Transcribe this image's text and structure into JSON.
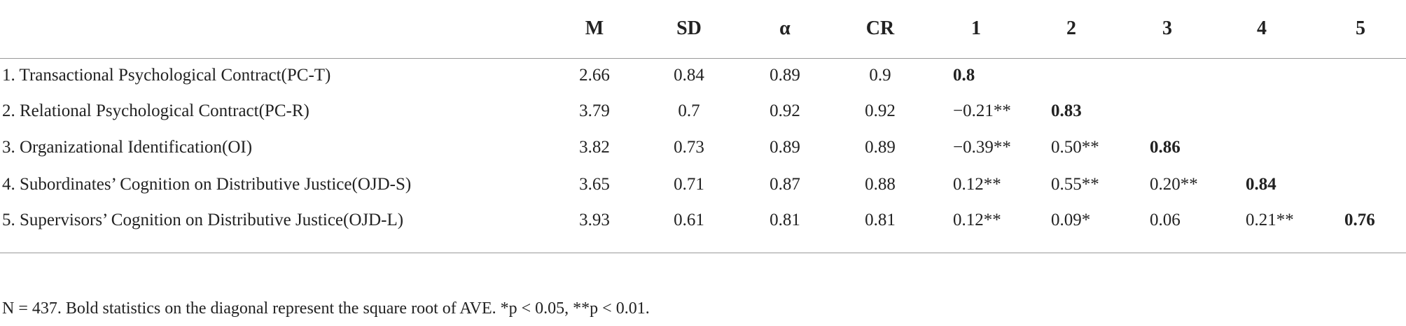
{
  "table": {
    "headers": [
      "M",
      "SD",
      "α",
      "CR",
      "1",
      "2",
      "3",
      "4",
      "5"
    ],
    "rows": [
      [
        "1. Transactional Psychological Contract(PC-T)",
        "2.66",
        "0.84",
        "0.89",
        "0.9",
        "0.8",
        null,
        null,
        null,
        null
      ],
      [
        "2. Relational Psychological Contract(PC-R)",
        "3.79",
        "0.7",
        "0.92",
        "0.92",
        "−0.21**",
        "0.83",
        null,
        null,
        null
      ],
      [
        "3. Organizational Identification(OI)",
        "3.82",
        "0.73",
        "0.89",
        "0.89",
        "−0.39**",
        "0.50**",
        "0.86",
        null,
        null
      ],
      [
        "4. Subordinates’ Cognition on Distributive Justice(OJD-S)",
        "3.65",
        "0.71",
        "0.87",
        "0.88",
        "0.12**",
        "0.55**",
        "0.20**",
        "0.84",
        null
      ],
      [
        "5. Supervisors’ Cognition on Distributive Justice(OJD-L)",
        "3.93",
        "0.61",
        "0.81",
        "0.81",
        "0.12**",
        "0.09*",
        "0.06",
        "0.21**",
        "0.76"
      ]
    ]
  },
  "footnote": "N = 437. Bold statistics on the diagonal represent the square root of AVE. *p < 0.05, **p < 0.01."
}
